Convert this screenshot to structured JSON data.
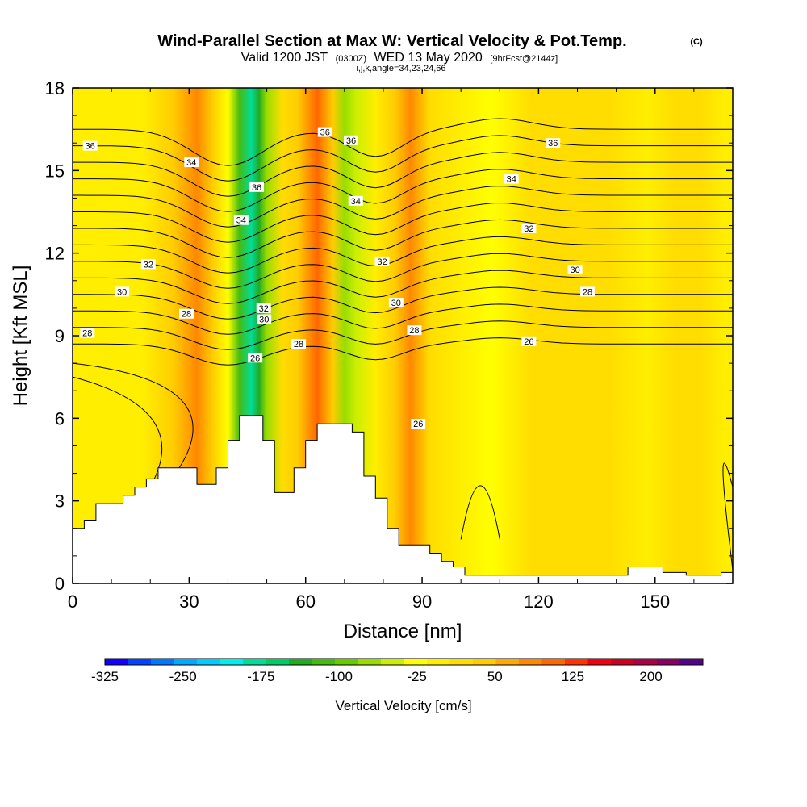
{
  "chart_data": {
    "type": "heatmap",
    "title": "Wind-Parallel Section at Max W: Vertical Velocity & Pot.Temp.",
    "title_mark": "(C)",
    "subtitle_valid": "Valid 1200 JST",
    "subtitle_utc": "(0300Z)",
    "subtitle_date": "WED 13 May 2020",
    "subtitle_fcst": "[9hrFcst@2144z]",
    "subtitle_indices": "i,j,k,angle=34,23,24,66",
    "xlabel": "Distance [nm]",
    "ylabel": "Height [Kft MSL]",
    "xlim": [
      0,
      170
    ],
    "ylim": [
      0,
      18
    ],
    "x_ticks": [
      0,
      30,
      60,
      90,
      120,
      150
    ],
    "y_ticks": [
      0,
      3,
      6,
      9,
      12,
      15,
      18
    ],
    "grid": false,
    "colorbar": {
      "label": "Vertical Velocity [cm/s]",
      "min": -325,
      "max": 250,
      "tick_labels": [
        -325,
        -250,
        -175,
        -100,
        -25,
        50,
        125,
        200
      ],
      "colors": [
        "#1100ff",
        "#0044ff",
        "#0077ff",
        "#00aaff",
        "#00ccff",
        "#00eeee",
        "#00dd99",
        "#00cc66",
        "#22aa22",
        "#44bb11",
        "#66cc00",
        "#99dd00",
        "#ccee00",
        "#ffff00",
        "#ffee00",
        "#ffdd00",
        "#ffcc00",
        "#ffaa00",
        "#ff8800",
        "#ff6600",
        "#ff3300",
        "#ee0011",
        "#cc0022",
        "#aa0044",
        "#880066",
        "#550088"
      ]
    },
    "w_columns": [
      {
        "x": 4,
        "w": -10
      },
      {
        "x": 10,
        "w": 5
      },
      {
        "x": 18,
        "w": 0
      },
      {
        "x": 26,
        "w": 30
      },
      {
        "x": 32,
        "w": 90
      },
      {
        "x": 36,
        "w": 40
      },
      {
        "x": 40,
        "w": -25
      },
      {
        "x": 43,
        "w": -110
      },
      {
        "x": 46,
        "w": -190
      },
      {
        "x": 48,
        "w": -140
      },
      {
        "x": 50,
        "w": -60
      },
      {
        "x": 54,
        "w": 10
      },
      {
        "x": 58,
        "w": 50
      },
      {
        "x": 63,
        "w": 100
      },
      {
        "x": 67,
        "w": 30
      },
      {
        "x": 70,
        "w": -70
      },
      {
        "x": 73,
        "w": -40
      },
      {
        "x": 78,
        "w": -5
      },
      {
        "x": 83,
        "w": 40
      },
      {
        "x": 87,
        "w": 80
      },
      {
        "x": 92,
        "w": 20
      },
      {
        "x": 100,
        "w": -10
      },
      {
        "x": 108,
        "w": -20
      },
      {
        "x": 118,
        "w": 10
      },
      {
        "x": 128,
        "w": 20
      },
      {
        "x": 138,
        "w": 10
      },
      {
        "x": 148,
        "w": 0
      },
      {
        "x": 155,
        "w": 25
      },
      {
        "x": 162,
        "w": 10
      },
      {
        "x": 168,
        "w": 0
      }
    ],
    "isentrope_labels": [
      {
        "text": "36",
        "x": 4.5,
        "y": 15.9
      },
      {
        "text": "34",
        "x": 30.6,
        "y": 15.3
      },
      {
        "text": "32",
        "x": 19.5,
        "y": 11.6
      },
      {
        "text": "30",
        "x": 12.7,
        "y": 10.6
      },
      {
        "text": "28",
        "x": 29.3,
        "y": 9.8
      },
      {
        "text": "28",
        "x": 3.8,
        "y": 9.1
      },
      {
        "text": "36",
        "x": 65.0,
        "y": 16.4
      },
      {
        "text": "36",
        "x": 71.7,
        "y": 16.1
      },
      {
        "text": "36",
        "x": 47.4,
        "y": 14.4
      },
      {
        "text": "34",
        "x": 43.4,
        "y": 13.2
      },
      {
        "text": "34",
        "x": 72.9,
        "y": 13.9
      },
      {
        "text": "32",
        "x": 79.7,
        "y": 11.7
      },
      {
        "text": "32",
        "x": 49.2,
        "y": 10.0
      },
      {
        "text": "30",
        "x": 49.3,
        "y": 9.6
      },
      {
        "text": "30",
        "x": 83.3,
        "y": 10.2
      },
      {
        "text": "28",
        "x": 58.2,
        "y": 8.7
      },
      {
        "text": "28",
        "x": 88.0,
        "y": 9.2
      },
      {
        "text": "26",
        "x": 47.0,
        "y": 8.2
      },
      {
        "text": "26",
        "x": 89.0,
        "y": 5.8
      },
      {
        "text": "36",
        "x": 123.7,
        "y": 16.0
      },
      {
        "text": "34",
        "x": 113.0,
        "y": 14.7
      },
      {
        "text": "32",
        "x": 117.5,
        "y": 12.9
      },
      {
        "text": "30",
        "x": 129.4,
        "y": 11.4
      },
      {
        "text": "28",
        "x": 132.6,
        "y": 10.6
      },
      {
        "text": "26",
        "x": 117.5,
        "y": 8.8
      }
    ],
    "terrain": [
      [
        0,
        2.0
      ],
      [
        3,
        2.0
      ],
      [
        3,
        2.3
      ],
      [
        6,
        2.3
      ],
      [
        6,
        2.9
      ],
      [
        13,
        2.9
      ],
      [
        13,
        3.2
      ],
      [
        16,
        3.2
      ],
      [
        16,
        3.5
      ],
      [
        19,
        3.5
      ],
      [
        19,
        3.8
      ],
      [
        22,
        3.8
      ],
      [
        22,
        4.2
      ],
      [
        32,
        4.2
      ],
      [
        32,
        3.6
      ],
      [
        37,
        3.6
      ],
      [
        37,
        4.2
      ],
      [
        40,
        4.2
      ],
      [
        40,
        5.2
      ],
      [
        43,
        5.2
      ],
      [
        43,
        6.1
      ],
      [
        49,
        6.1
      ],
      [
        49,
        5.2
      ],
      [
        52,
        5.2
      ],
      [
        52,
        3.3
      ],
      [
        57,
        3.3
      ],
      [
        57,
        4.2
      ],
      [
        60,
        4.2
      ],
      [
        60,
        5.2
      ],
      [
        63,
        5.2
      ],
      [
        63,
        5.8
      ],
      [
        72,
        5.8
      ],
      [
        72,
        5.5
      ],
      [
        75,
        5.5
      ],
      [
        75,
        3.9
      ],
      [
        78,
        3.9
      ],
      [
        78,
        3.1
      ],
      [
        81,
        3.1
      ],
      [
        81,
        2.0
      ],
      [
        84,
        2.0
      ],
      [
        84,
        1.4
      ],
      [
        92,
        1.4
      ],
      [
        92,
        1.1
      ],
      [
        95,
        1.1
      ],
      [
        95,
        0.8
      ],
      [
        98,
        0.8
      ],
      [
        98,
        0.6
      ],
      [
        101,
        0.6
      ],
      [
        101,
        0.3
      ],
      [
        143,
        0.3
      ],
      [
        143,
        0.6
      ],
      [
        152,
        0.6
      ],
      [
        152,
        0.4
      ],
      [
        158,
        0.4
      ],
      [
        158,
        0.3
      ],
      [
        167,
        0.3
      ],
      [
        167,
        0.4
      ],
      [
        170,
        0.4
      ],
      [
        170,
        0
      ]
    ]
  }
}
